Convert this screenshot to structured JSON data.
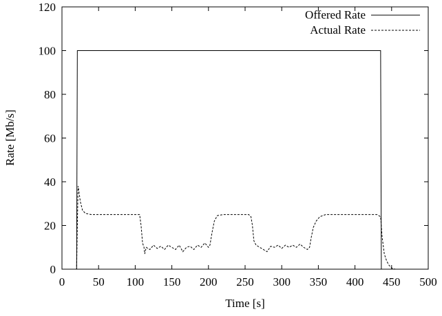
{
  "chart_data": {
    "type": "line",
    "title": "",
    "xlabel": "Time [s]",
    "ylabel": "Rate [Mb/s]",
    "xlim": [
      0,
      500
    ],
    "ylim": [
      0,
      120
    ],
    "x_ticks": [
      "0",
      "50",
      "100",
      "150",
      "200",
      "250",
      "300",
      "350",
      "400",
      "450",
      "500"
    ],
    "y_ticks": [
      "0",
      "20",
      "40",
      "60",
      "80",
      "100",
      "120"
    ],
    "grid": false,
    "legend_position": "top-right",
    "series": [
      {
        "name": "Offered Rate",
        "style": "solid",
        "color": "#000000",
        "points": [
          [
            0,
            0
          ],
          [
            20,
            0
          ],
          [
            21,
            100
          ],
          [
            60,
            100
          ],
          [
            100,
            100
          ],
          [
            150,
            100
          ],
          [
            200,
            100
          ],
          [
            250,
            100
          ],
          [
            300,
            100
          ],
          [
            350,
            100
          ],
          [
            400,
            100
          ],
          [
            435,
            100
          ],
          [
            436,
            0
          ],
          [
            470,
            0
          ]
        ]
      },
      {
        "name": "Actual Rate",
        "style": "dashed",
        "color": "#000000",
        "points": [
          [
            0,
            0
          ],
          [
            20,
            0
          ],
          [
            21,
            20
          ],
          [
            22,
            38
          ],
          [
            23,
            36
          ],
          [
            25,
            31
          ],
          [
            28,
            27
          ],
          [
            32,
            25.5
          ],
          [
            40,
            25
          ],
          [
            60,
            25
          ],
          [
            80,
            25
          ],
          [
            100,
            25
          ],
          [
            106,
            25
          ],
          [
            108,
            20
          ],
          [
            110,
            12
          ],
          [
            112,
            10
          ],
          [
            113,
            7
          ],
          [
            115,
            10
          ],
          [
            120,
            9
          ],
          [
            125,
            11
          ],
          [
            130,
            9.5
          ],
          [
            135,
            10.5
          ],
          [
            140,
            9
          ],
          [
            145,
            11
          ],
          [
            150,
            10
          ],
          [
            155,
            9
          ],
          [
            160,
            11
          ],
          [
            165,
            8
          ],
          [
            170,
            10
          ],
          [
            175,
            10.5
          ],
          [
            180,
            9
          ],
          [
            185,
            11
          ],
          [
            190,
            10
          ],
          [
            195,
            12
          ],
          [
            200,
            10
          ],
          [
            202,
            11
          ],
          [
            205,
            17
          ],
          [
            208,
            22
          ],
          [
            212,
            24.5
          ],
          [
            220,
            25
          ],
          [
            240,
            25
          ],
          [
            255,
            25
          ],
          [
            258,
            24
          ],
          [
            260,
            20
          ],
          [
            262,
            13
          ],
          [
            265,
            11
          ],
          [
            270,
            10
          ],
          [
            275,
            9
          ],
          [
            280,
            8
          ],
          [
            285,
            10.5
          ],
          [
            290,
            10
          ],
          [
            295,
            11
          ],
          [
            300,
            9.5
          ],
          [
            305,
            11
          ],
          [
            310,
            10
          ],
          [
            315,
            11
          ],
          [
            320,
            10
          ],
          [
            325,
            11.5
          ],
          [
            330,
            10
          ],
          [
            335,
            9
          ],
          [
            338,
            10
          ],
          [
            340,
            14
          ],
          [
            343,
            19
          ],
          [
            347,
            22
          ],
          [
            352,
            24
          ],
          [
            360,
            25
          ],
          [
            400,
            25
          ],
          [
            420,
            25
          ],
          [
            430,
            25
          ],
          [
            435,
            24
          ],
          [
            437,
            15
          ],
          [
            440,
            7
          ],
          [
            443,
            4
          ],
          [
            446,
            2
          ],
          [
            450,
            0.5
          ],
          [
            455,
            0
          ],
          [
            470,
            0
          ]
        ]
      }
    ]
  }
}
